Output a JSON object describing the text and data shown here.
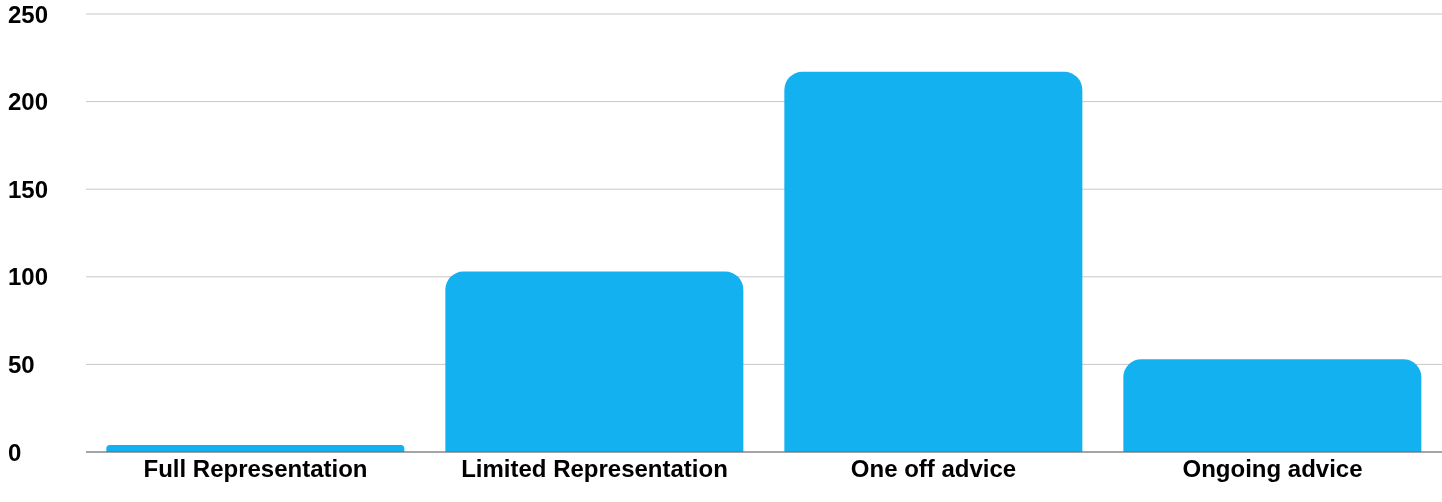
{
  "chart_data": {
    "type": "bar",
    "categories": [
      "Full Representation",
      "Limited Representation",
      "One off advice",
      "Ongoing advice"
    ],
    "values": [
      4,
      103,
      217,
      53
    ],
    "color": "#14b1f0",
    "ylim": [
      0,
      250
    ],
    "yticks": [
      0,
      50,
      100,
      150,
      200,
      250
    ],
    "grid": "y"
  }
}
